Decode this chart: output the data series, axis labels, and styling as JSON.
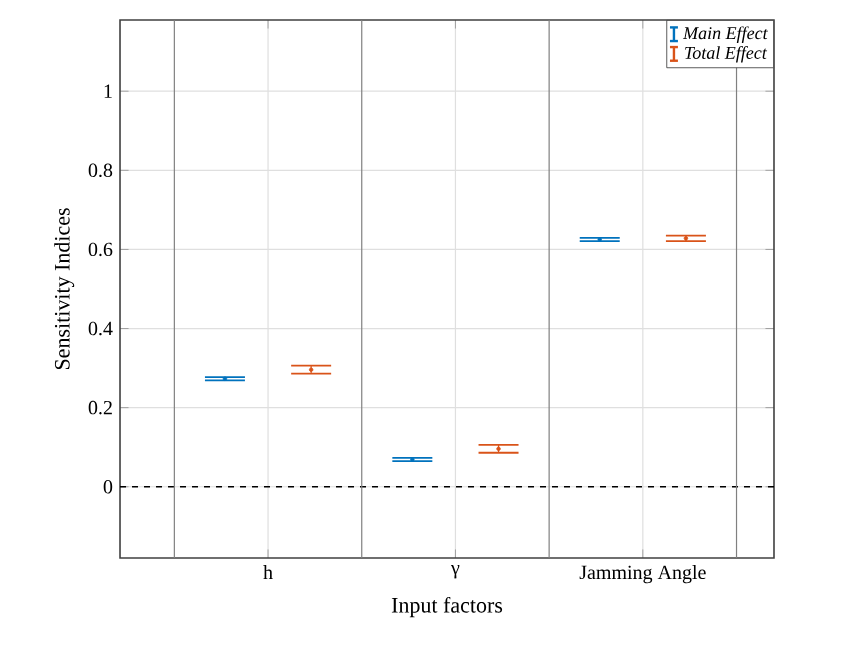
{
  "chart_data": {
    "type": "scatter",
    "xlabel": "Input factors",
    "ylabel": "Sensitivity Indices",
    "categories": [
      "h",
      "γ",
      "Jamming Angle"
    ],
    "series": [
      {
        "name": "Main Effect",
        "color": "#0072bd",
        "values": [
          0.273,
          0.069,
          0.625
        ],
        "errors": [
          0.004,
          0.004,
          0.004
        ]
      },
      {
        "name": "Total Effect",
        "color": "#d95319",
        "values": [
          0.296,
          0.096,
          0.628
        ],
        "errors": [
          0.01,
          0.01,
          0.007
        ]
      }
    ],
    "ylim": [
      -0.18,
      1.18
    ],
    "yticks": [
      0,
      0.2,
      0.4,
      0.6,
      0.8,
      1
    ],
    "grid": true,
    "legend": "top right",
    "marker": "circle",
    "ref_lines": [
      {
        "axis": "y",
        "value": 0,
        "color": "#000000",
        "line_style": "dashed"
      }
    ]
  }
}
